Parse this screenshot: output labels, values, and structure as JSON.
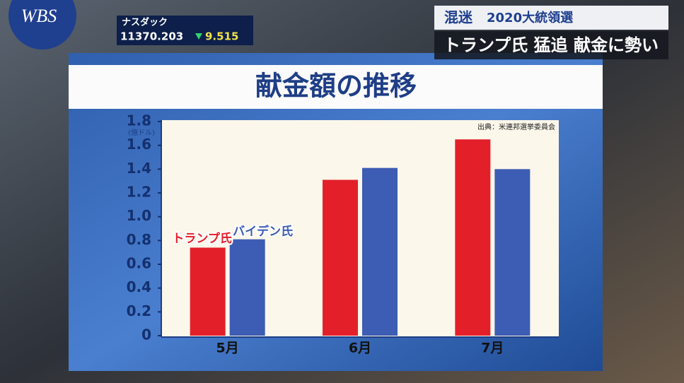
{
  "broadcast": {
    "logo": "WBS",
    "ticker": {
      "name": "ナスダック",
      "value": "11370.203",
      "change": "9.515"
    },
    "banner": {
      "tag": "混迷",
      "event": "2020大統領選"
    },
    "headline": "トランプ氏 猛追 献金に勢い"
  },
  "chart_data": {
    "type": "bar",
    "title": "献金額の推移",
    "unit_label": "(億ドル)",
    "source": "出典：米連邦選挙委員会",
    "categories": [
      "5月",
      "6月",
      "7月"
    ],
    "series": [
      {
        "name": "トランプ氏",
        "color": "#e3202a",
        "values": [
          0.74,
          1.31,
          1.65
        ]
      },
      {
        "name": "バイデン氏",
        "color": "#3d5cb3",
        "values": [
          0.81,
          1.41,
          1.4
        ]
      }
    ],
    "ylim": [
      0,
      1.8
    ],
    "yticks": [
      0,
      0.2,
      0.4,
      0.6,
      0.8,
      {
        "value": 1,
        "label": "1.0"
      },
      1.2,
      1.4,
      1.6,
      1.8
    ],
    "grid": false
  }
}
